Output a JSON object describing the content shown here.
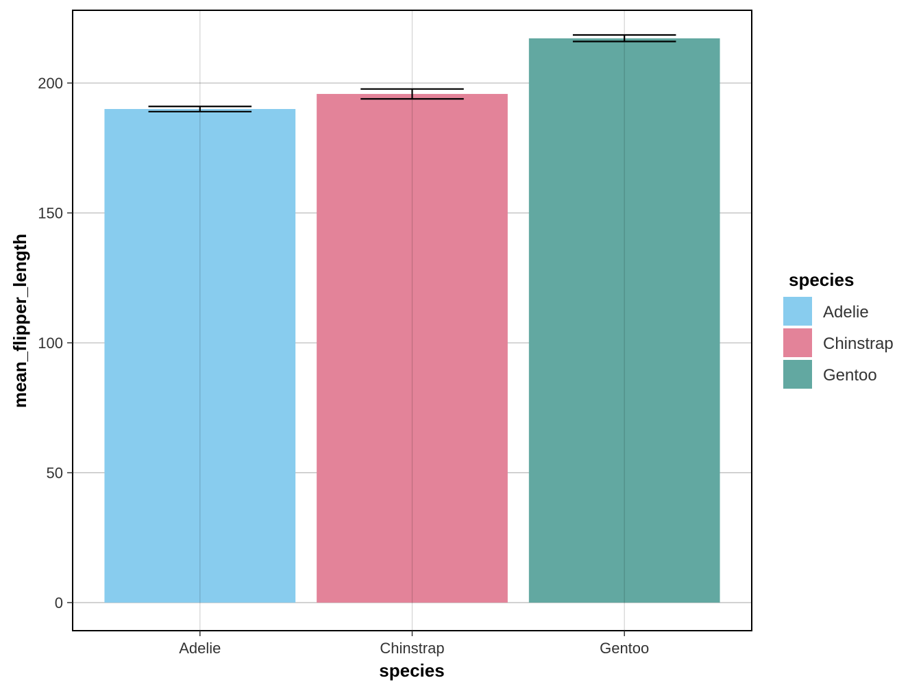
{
  "chart_data": {
    "type": "bar",
    "categories": [
      "Adelie",
      "Chinstrap",
      "Gentoo"
    ],
    "values": [
      190.0,
      195.8,
      217.2
    ],
    "error_low": [
      189.0,
      193.9,
      216.0
    ],
    "error_high": [
      191.0,
      197.7,
      218.5
    ],
    "colors": [
      "#88CCEE",
      "#E38399",
      "#62A8A1"
    ],
    "xlabel": "species",
    "ylabel": "mean_flipper_length",
    "ylim": [
      -10.8,
      228.0
    ],
    "yticks": [
      0,
      50,
      100,
      150,
      200
    ],
    "grid": true,
    "legend": {
      "title": "species",
      "placement": "right",
      "entries": [
        "Adelie",
        "Chinstrap",
        "Gentoo"
      ]
    }
  }
}
